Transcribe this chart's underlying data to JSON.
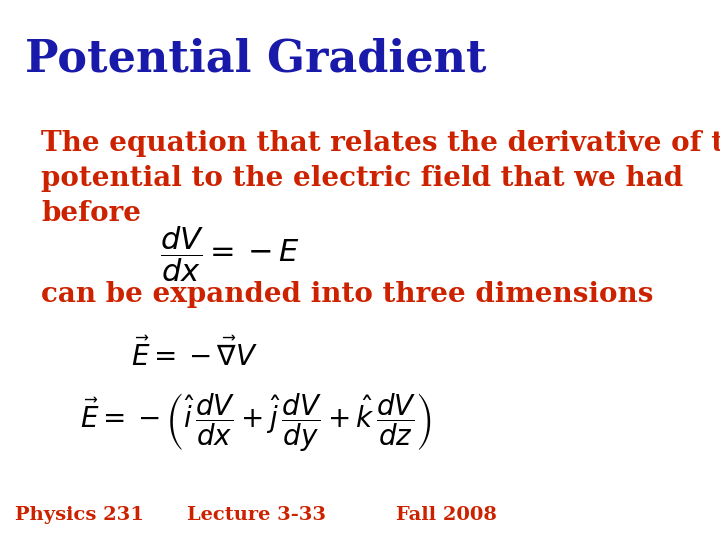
{
  "title": "Potential Gradient",
  "title_color": "#1a1aaa",
  "title_fontsize": 32,
  "title_fontstyle": "bold",
  "body_color": "#cc2200",
  "body_fontsize": 20,
  "eq_color": "#000000",
  "background_color": "#ffffff",
  "text1": "The equation that relates the derivative of the\npotential to the electric field that we had\nbefore",
  "eq1": "$\\dfrac{dV}{dx} = -E$",
  "text2": "can be expanded into three dimensions",
  "eq2": "$\\overset{\\shortparallel}{E} = -\\overset{\\shortparallel}{\\nabla}V$",
  "eq3": "$\\overset{\\square}{E} = -\\left(\\hat{i}\\,\\dfrac{dV}{dx} + \\hat{j}\\,\\dfrac{dV}{dy} + \\hat{k}\\,\\dfrac{dV}{dz}\\right)$",
  "footer_left": "Physics 231",
  "footer_center": "Lecture 3-33",
  "footer_right": "Fall 2008",
  "footer_fontsize": 14,
  "footer_color": "#cc2200"
}
